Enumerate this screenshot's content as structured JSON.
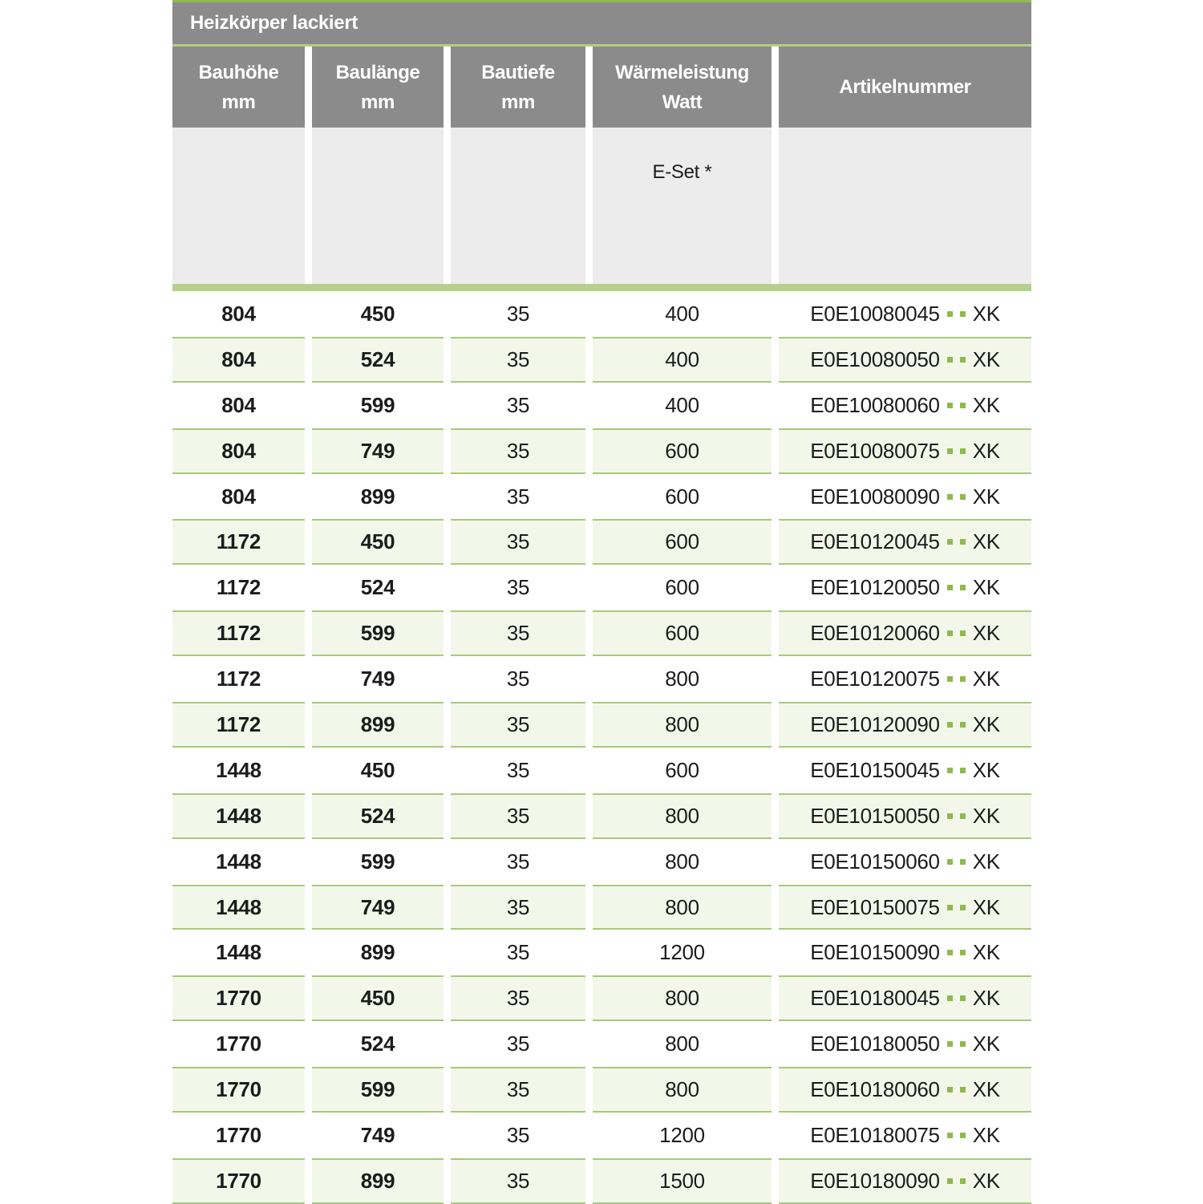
{
  "table": {
    "title": "Heizkörper lackiert",
    "columns": [
      {
        "line1": "Bauhöhe",
        "line2": "mm"
      },
      {
        "line1": "Baulänge",
        "line2": "mm"
      },
      {
        "line1": "Bautiefe",
        "line2": "mm"
      },
      {
        "line1": "Wärmeleistung",
        "line2": "Watt"
      },
      {
        "line1": "Artikelnummer",
        "line2": ""
      }
    ],
    "subheader": {
      "eset_label": "E-Set *"
    },
    "rows": [
      {
        "bauhoehe": "804",
        "baulaenge": "450",
        "bautiefe": "35",
        "watt": "400",
        "artikel_prefix": "E0E10080045",
        "artikel_suffix": "XK"
      },
      {
        "bauhoehe": "804",
        "baulaenge": "524",
        "bautiefe": "35",
        "watt": "400",
        "artikel_prefix": "E0E10080050",
        "artikel_suffix": "XK"
      },
      {
        "bauhoehe": "804",
        "baulaenge": "599",
        "bautiefe": "35",
        "watt": "400",
        "artikel_prefix": "E0E10080060",
        "artikel_suffix": "XK"
      },
      {
        "bauhoehe": "804",
        "baulaenge": "749",
        "bautiefe": "35",
        "watt": "600",
        "artikel_prefix": "E0E10080075",
        "artikel_suffix": "XK"
      },
      {
        "bauhoehe": "804",
        "baulaenge": "899",
        "bautiefe": "35",
        "watt": "600",
        "artikel_prefix": "E0E10080090",
        "artikel_suffix": "XK"
      },
      {
        "bauhoehe": "1172",
        "baulaenge": "450",
        "bautiefe": "35",
        "watt": "600",
        "artikel_prefix": "E0E10120045",
        "artikel_suffix": "XK"
      },
      {
        "bauhoehe": "1172",
        "baulaenge": "524",
        "bautiefe": "35",
        "watt": "600",
        "artikel_prefix": "E0E10120050",
        "artikel_suffix": "XK"
      },
      {
        "bauhoehe": "1172",
        "baulaenge": "599",
        "bautiefe": "35",
        "watt": "600",
        "artikel_prefix": "E0E10120060",
        "artikel_suffix": "XK"
      },
      {
        "bauhoehe": "1172",
        "baulaenge": "749",
        "bautiefe": "35",
        "watt": "800",
        "artikel_prefix": "E0E10120075",
        "artikel_suffix": "XK"
      },
      {
        "bauhoehe": "1172",
        "baulaenge": "899",
        "bautiefe": "35",
        "watt": "800",
        "artikel_prefix": "E0E10120090",
        "artikel_suffix": "XK"
      },
      {
        "bauhoehe": "1448",
        "baulaenge": "450",
        "bautiefe": "35",
        "watt": "600",
        "artikel_prefix": "E0E10150045",
        "artikel_suffix": "XK"
      },
      {
        "bauhoehe": "1448",
        "baulaenge": "524",
        "bautiefe": "35",
        "watt": "800",
        "artikel_prefix": "E0E10150050",
        "artikel_suffix": "XK"
      },
      {
        "bauhoehe": "1448",
        "baulaenge": "599",
        "bautiefe": "35",
        "watt": "800",
        "artikel_prefix": "E0E10150060",
        "artikel_suffix": "XK"
      },
      {
        "bauhoehe": "1448",
        "baulaenge": "749",
        "bautiefe": "35",
        "watt": "800",
        "artikel_prefix": "E0E10150075",
        "artikel_suffix": "XK"
      },
      {
        "bauhoehe": "1448",
        "baulaenge": "899",
        "bautiefe": "35",
        "watt": "1200",
        "artikel_prefix": "E0E10150090",
        "artikel_suffix": "XK"
      },
      {
        "bauhoehe": "1770",
        "baulaenge": "450",
        "bautiefe": "35",
        "watt": "800",
        "artikel_prefix": "E0E10180045",
        "artikel_suffix": "XK"
      },
      {
        "bauhoehe": "1770",
        "baulaenge": "524",
        "bautiefe": "35",
        "watt": "800",
        "artikel_prefix": "E0E10180050",
        "artikel_suffix": "XK"
      },
      {
        "bauhoehe": "1770",
        "baulaenge": "599",
        "bautiefe": "35",
        "watt": "800",
        "artikel_prefix": "E0E10180060",
        "artikel_suffix": "XK"
      },
      {
        "bauhoehe": "1770",
        "baulaenge": "749",
        "bautiefe": "35",
        "watt": "1200",
        "artikel_prefix": "E0E10180075",
        "artikel_suffix": "XK"
      },
      {
        "bauhoehe": "1770",
        "baulaenge": "899",
        "bautiefe": "35",
        "watt": "1500",
        "artikel_prefix": "E0E10180090",
        "artikel_suffix": "XK"
      }
    ]
  },
  "colors": {
    "header_gray": "#8b8b8b",
    "subheader_gray": "#ececec",
    "row_alt_bg": "#f3f7ea",
    "row_alt_border": "#a9c87b",
    "thick_separator": "#b5cf8d",
    "top_line": "#8fb94e",
    "dot_green": "#8fb94e"
  }
}
